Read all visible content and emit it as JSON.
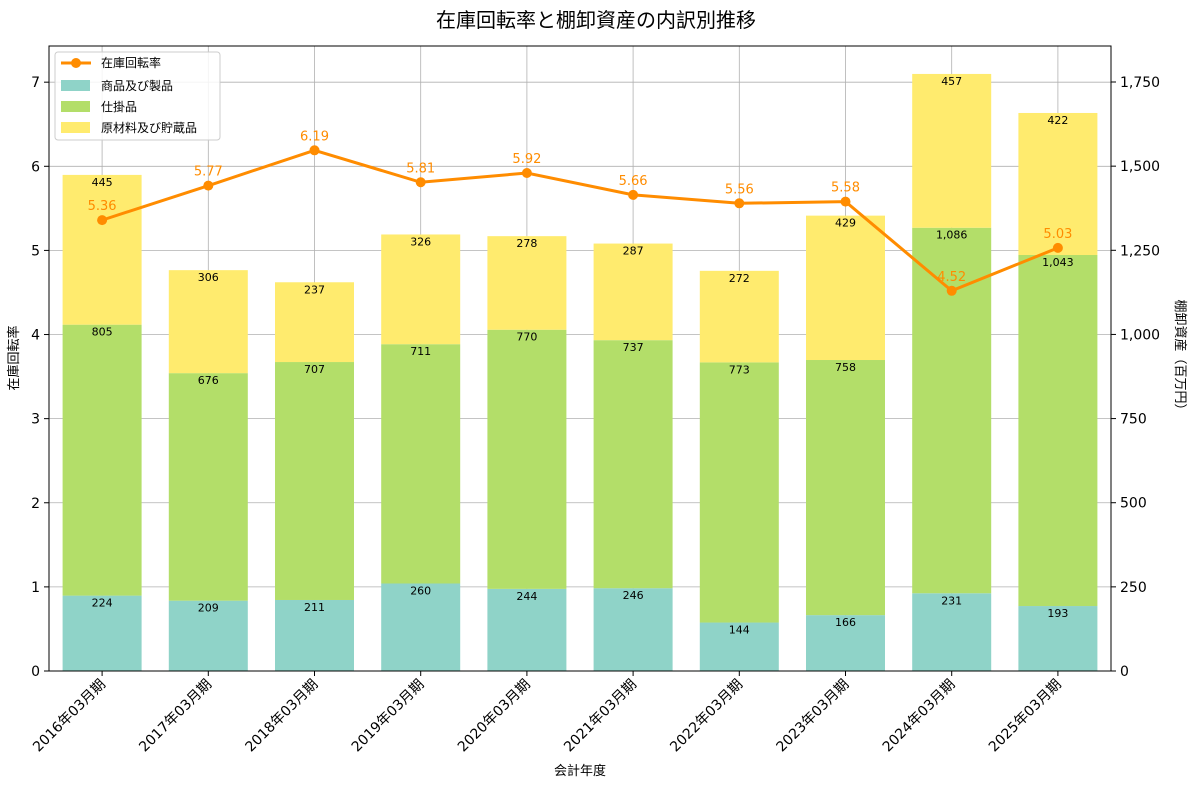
{
  "chart_data": {
    "type": "bar",
    "title": "在庫回転率と棚卸資産の内訳別推移",
    "xlabel": "会計年度",
    "ylabel_left": "在庫回転率",
    "ylabel_right": "棚卸資産（百万円）",
    "categories": [
      "2016年03月期",
      "2017年03月期",
      "2018年03月期",
      "2019年03月期",
      "2020年03月期",
      "2021年03月期",
      "2022年03月期",
      "2023年03月期",
      "2024年03月期",
      "2025年03月期"
    ],
    "bar_series": [
      {
        "name": "商品及び製品",
        "color": "#8fd3c8",
        "values": [
          224,
          209,
          211,
          260,
          244,
          246,
          144,
          166,
          231,
          193
        ],
        "labels": [
          "224",
          "209",
          "211",
          "260",
          "244",
          "246",
          "144",
          "166",
          "231",
          "193"
        ]
      },
      {
        "name": "仕掛品",
        "color": "#b3de69",
        "values": [
          805,
          676,
          707,
          711,
          770,
          737,
          773,
          758,
          1086,
          1043
        ],
        "labels": [
          "805",
          "676",
          "707",
          "711",
          "770",
          "737",
          "773",
          "758",
          "1,086",
          "1,043"
        ]
      },
      {
        "name": "原材料及び貯蔵品",
        "color": "#ffeb6e",
        "values": [
          445,
          306,
          237,
          326,
          278,
          287,
          272,
          429,
          457,
          422
        ],
        "labels": [
          "445",
          "306",
          "237",
          "326",
          "278",
          "287",
          "272",
          "429",
          "457",
          "422"
        ]
      }
    ],
    "line_series": {
      "name": "在庫回転率",
      "color": "#ff8c00",
      "values": [
        5.36,
        5.77,
        6.19,
        5.81,
        5.92,
        5.66,
        5.56,
        5.58,
        4.52,
        5.03
      ],
      "labels": [
        "5.36",
        "5.77",
        "6.19",
        "5.81",
        "5.92",
        "5.66",
        "5.56",
        "5.58",
        "4.52",
        "5.03"
      ]
    },
    "ylim_left": [
      0,
      7.43
    ],
    "ylim_right": [
      0,
      1857
    ],
    "yticks_left": [
      0,
      1,
      2,
      3,
      4,
      5,
      6,
      7
    ],
    "yticks_right": [
      0,
      250,
      500,
      750,
      1000,
      1250,
      1500,
      1750
    ],
    "yticklabels_right": [
      "0",
      "250",
      "500",
      "750",
      "1,000",
      "1,250",
      "1,500",
      "1,750"
    ],
    "grid": true,
    "legend_position": "top-left"
  }
}
